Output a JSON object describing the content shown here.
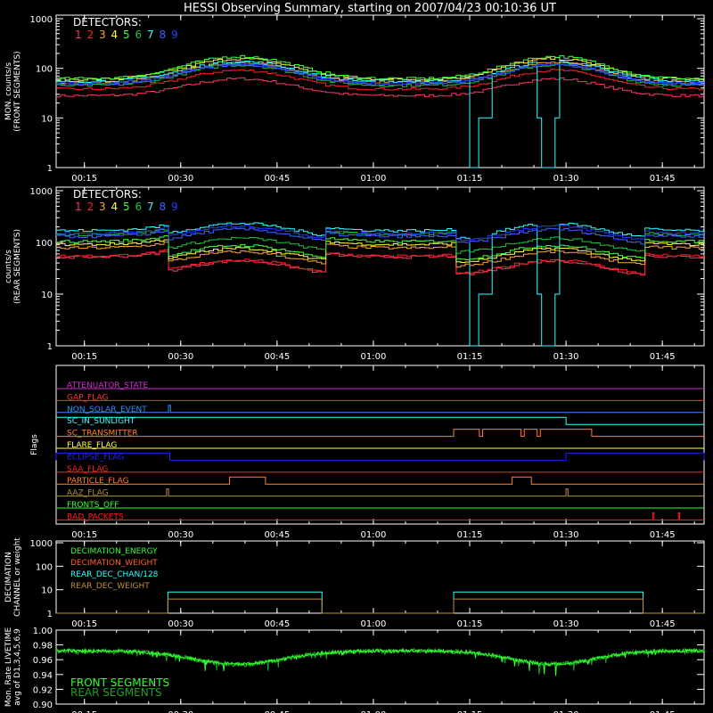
{
  "title": "HESSI Observing Summary, starting on 2007/04/23 00:10:36 UT",
  "x_ticks": [
    "00:15",
    "00:30",
    "00:45",
    "01:00",
    "01:15",
    "01:30",
    "01:45"
  ],
  "x_tick_minutes": [
    15,
    30,
    45,
    60,
    75,
    90,
    105
  ],
  "x_range_minutes": [
    10.6,
    111.5
  ],
  "detector_colors": [
    "#ff3366",
    "#ff2020",
    "#ffa030",
    "#ffff40",
    "#40ff40",
    "#20c040",
    "#30ffff",
    "#4060ff",
    "#2040ff"
  ],
  "chart_data": [
    {
      "type": "line",
      "id": "front",
      "ylabel": "MON. counts/s (FRONT SEGMENTS)",
      "ylabel_lines": [
        "MON. counts/s",
        "(FRONT SEGMENTS)"
      ],
      "yscale": "log",
      "ylim": [
        1,
        1000
      ],
      "y_ticks": [
        "1",
        "10",
        "100",
        "1000"
      ],
      "legend_title": "DETECTORS:",
      "legend": [
        "1",
        "2",
        "3",
        "4",
        "5",
        "6",
        "7",
        "8",
        "9"
      ],
      "series": [
        {
          "name": "1",
          "base": 28,
          "amp": 1.2
        },
        {
          "name": "2",
          "base": 38,
          "amp": 1.4
        },
        {
          "name": "3",
          "base": 52,
          "amp": 1.5
        },
        {
          "name": "4",
          "base": 60,
          "amp": 1.6
        },
        {
          "name": "5",
          "base": 62,
          "amp": 1.8
        },
        {
          "name": "6",
          "base": 45,
          "amp": 1.6
        },
        {
          "name": "7",
          "base": 55,
          "amp": 1.5
        },
        {
          "name": "8",
          "base": 48,
          "amp": 1.5
        },
        {
          "name": "9",
          "base": 50,
          "amp": 1.4
        }
      ]
    },
    {
      "type": "line",
      "id": "rear",
      "ylabel": "counts/s (REAR SEGMENTS)",
      "ylabel_lines": [
        "counts/s",
        "(REAR SEGMENTS)"
      ],
      "yscale": "log",
      "ylim": [
        1,
        1000
      ],
      "y_ticks": [
        "1",
        "10",
        "100",
        "1000"
      ],
      "legend_title": "DETECTORS:",
      "legend": [
        "1",
        "2",
        "3",
        "4",
        "5",
        "6",
        "7",
        "8",
        "9"
      ]
    },
    {
      "type": "flags",
      "id": "flags",
      "ylabel": "Flags",
      "flags": [
        {
          "name": "ATTENUATOR_STATE",
          "color": "#d030d0"
        },
        {
          "name": "GAP_FLAG",
          "color": "#ff3030"
        },
        {
          "name": "NON_SOLAR_EVENT",
          "color": "#3090ff"
        },
        {
          "name": "SC_IN_SUNLIGHT",
          "color": "#30ffff"
        },
        {
          "name": "SC_TRANSMITTER",
          "color": "#ff8030"
        },
        {
          "name": "FLARE_FLAG",
          "color": "#ffff40"
        },
        {
          "name": "ECLIPSE_FLAG",
          "color": "#2020ff"
        },
        {
          "name": "SAA_FLAG",
          "color": "#ff2020"
        },
        {
          "name": "PARTICLE_FLAG",
          "color": "#ff8030"
        },
        {
          "name": "AAZ_FLAG",
          "color": "#b09040"
        },
        {
          "name": "FRONTS_OFF",
          "color": "#30ff30"
        },
        {
          "name": "BAD_PACKETS",
          "color": "#ff2020"
        }
      ]
    },
    {
      "type": "line",
      "id": "decimation",
      "ylabel": "DECIMATION CHANNEL or weight",
      "ylabel_lines": [
        "DECIMATION",
        "CHANNEL or weight"
      ],
      "yscale": "log",
      "ylim": [
        1,
        1000
      ],
      "y_ticks": [
        "1",
        "10",
        "100",
        "1000"
      ],
      "legend": [
        {
          "name": "DECIMATION_ENERGY",
          "color": "#30ff30"
        },
        {
          "name": "DECIMATION_WEIGHT",
          "color": "#ff6020"
        },
        {
          "name": "REAR_DEC_CHAN/128",
          "color": "#30ffff"
        },
        {
          "name": "REAR_DEC_WEIGHT",
          "color": "#c09030"
        }
      ],
      "series": [
        {
          "name": "REAR_DEC_CHAN/128",
          "value": 8,
          "windows": [
            [
              28,
              52
            ],
            [
              72.5,
              102
            ]
          ]
        },
        {
          "name": "REAR_DEC_WEIGHT",
          "value": 4,
          "windows": [
            [
              28,
              52
            ],
            [
              72.5,
              102
            ]
          ]
        }
      ]
    },
    {
      "type": "line",
      "id": "livetime",
      "ylabel": "Mon. Rate LIVETIME avg of D1,3,4,5,6,9",
      "ylabel_lines": [
        "Mon. Rate LIVETIME",
        "avg of D1,3,4,5,6,9"
      ],
      "ylim": [
        0.9,
        1.0
      ],
      "y_ticks": [
        "0.90",
        "0.92",
        "0.94",
        "0.96",
        "0.98",
        "1.00"
      ],
      "legend": [
        {
          "name": "FRONT SEGMENTS",
          "color": "#30ff30"
        },
        {
          "name": "REAR SEGMENTS",
          "color": "#20a020"
        }
      ]
    }
  ]
}
